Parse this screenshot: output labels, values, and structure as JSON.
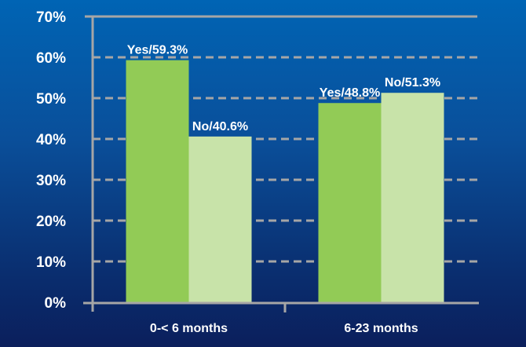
{
  "chart_data": {
    "type": "bar",
    "title": "",
    "xlabel": "",
    "ylabel": "",
    "ylim": [
      0,
      70
    ],
    "yticks": [
      0,
      10,
      20,
      30,
      40,
      50,
      60,
      70
    ],
    "ytick_labels": [
      "0%",
      "10%",
      "20%",
      "30%",
      "40%",
      "50%",
      "60%",
      "70%"
    ],
    "grid": true,
    "categories": [
      "0-< 6 months",
      "6-23 months"
    ],
    "series": [
      {
        "name": "Yes",
        "color": "#92cb56",
        "values": [
          59.3,
          48.8
        ],
        "labels": [
          "Yes/59.3%",
          "Yes/48.8%"
        ]
      },
      {
        "name": "No",
        "color": "#c8e3a9",
        "values": [
          40.6,
          51.3
        ],
        "labels": [
          "No/40.6%",
          "No/51.3%"
        ]
      }
    ],
    "axis_color": "#a6a6a6"
  }
}
